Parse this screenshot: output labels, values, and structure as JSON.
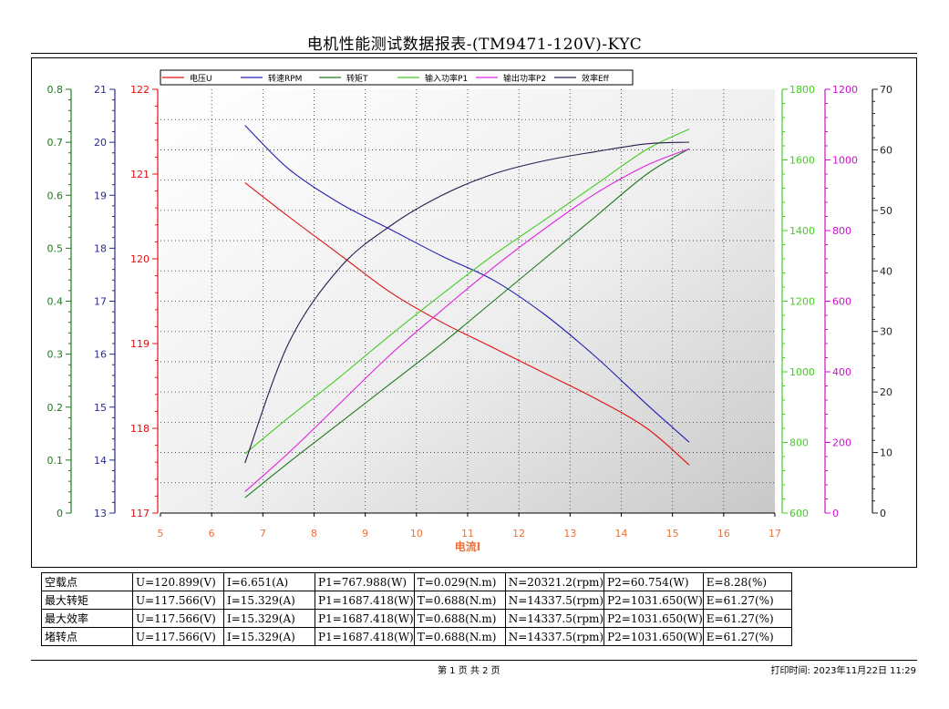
{
  "title": "电机性能测试数据报表-(TM9471-120V)-KYC",
  "chart_data": {
    "type": "line",
    "title": "",
    "xlabel": "电流I",
    "xlim": [
      5,
      17
    ],
    "x_ticks": [
      5,
      6,
      7,
      8,
      9,
      10,
      11,
      12,
      13,
      14,
      15,
      16,
      17
    ],
    "grid": true,
    "legend": "top",
    "x": [
      6.651,
      7.5,
      8.5,
      9.5,
      10.5,
      11.5,
      12.5,
      13.5,
      14.5,
      15.329
    ],
    "axes": [
      {
        "id": "torque",
        "side": "left",
        "range": [
          0,
          0.8
        ],
        "ticks": [
          0,
          0.1,
          0.2,
          0.3,
          0.4,
          0.5,
          0.6,
          0.7,
          0.8
        ],
        "color": "#1e7a1e"
      },
      {
        "id": "rpm",
        "side": "left",
        "range": [
          13,
          21
        ],
        "ticks": [
          13,
          14,
          15,
          16,
          17,
          18,
          19,
          20,
          21
        ],
        "color": "#2a2a8c"
      },
      {
        "id": "voltage",
        "side": "left",
        "range": [
          117,
          122
        ],
        "ticks": [
          117,
          118,
          119,
          120,
          121,
          122
        ],
        "color": "#e01010"
      },
      {
        "id": "p1",
        "side": "right",
        "range": [
          600,
          1800
        ],
        "ticks": [
          600,
          800,
          1000,
          1200,
          1400,
          1600,
          1800
        ],
        "color": "#44cc22"
      },
      {
        "id": "p2",
        "side": "right",
        "range": [
          0,
          1200
        ],
        "ticks": [
          0,
          200,
          400,
          600,
          800,
          1000,
          1200
        ],
        "color": "#cc10cc"
      },
      {
        "id": "eff",
        "side": "right",
        "range": [
          0,
          70
        ],
        "ticks": [
          0,
          10,
          20,
          30,
          40,
          50,
          60,
          70
        ],
        "color": "#222222"
      }
    ],
    "series": [
      {
        "name": "电压U",
        "axis": "voltage",
        "color": "#e01010",
        "values": [
          120.899,
          120.5,
          120.05,
          119.6,
          119.25,
          118.95,
          118.65,
          118.35,
          118.0,
          117.566
        ]
      },
      {
        "name": "转速RPM",
        "axis": "rpm",
        "color": "#2020b0",
        "values": [
          20.3212,
          19.5,
          18.85,
          18.35,
          17.85,
          17.4,
          16.75,
          15.95,
          15.05,
          14.3375
        ]
      },
      {
        "name": "转矩T",
        "axis": "torque",
        "color": "#1e7a1e",
        "values": [
          0.029,
          0.095,
          0.17,
          0.245,
          0.32,
          0.4,
          0.48,
          0.56,
          0.64,
          0.688
        ]
      },
      {
        "name": "输入功率P1",
        "axis": "p1",
        "color": "#44cc22",
        "values": [
          767.988,
          870,
          985,
          1105,
          1220,
          1330,
          1430,
          1530,
          1630,
          1687.418
        ]
      },
      {
        "name": "输出功率P2",
        "axis": "p2",
        "color": "#e020e0",
        "values": [
          60.754,
          170,
          310,
          450,
          575,
          695,
          805,
          905,
          985,
          1031.65
        ]
      },
      {
        "name": "效率Eff",
        "axis": "eff",
        "color": "#2a1a4e",
        "values": [
          8.28,
          28,
          40.5,
          47.5,
          52.5,
          56,
          58.2,
          59.7,
          61,
          61.27
        ]
      }
    ]
  },
  "table": {
    "rows": [
      [
        "空载点",
        "U=120.899(V)",
        "I=6.651(A)",
        "P1=767.988(W)",
        "T=0.029(N.m)",
        "N=20321.2(rpm)",
        "P2=60.754(W)",
        "E=8.28(%)"
      ],
      [
        "最大转矩",
        "U=117.566(V)",
        "I=15.329(A)",
        "P1=1687.418(W)",
        "T=0.688(N.m)",
        "N=14337.5(rpm)",
        "P2=1031.650(W)",
        "E=61.27(%)"
      ],
      [
        "最大效率",
        "U=117.566(V)",
        "I=15.329(A)",
        "P1=1687.418(W)",
        "T=0.688(N.m)",
        "N=14337.5(rpm)",
        "P2=1031.650(W)",
        "E=61.27(%)"
      ],
      [
        "堵转点",
        "U=117.566(V)",
        "I=15.329(A)",
        "P1=1687.418(W)",
        "T=0.688(N.m)",
        "N=14337.5(rpm)",
        "P2=1031.650(W)",
        "E=61.27(%)"
      ]
    ]
  },
  "footer": {
    "page_info": "第 1 页   共 2 页",
    "print_time": "打印时间: 2023年11月22日 11:29"
  }
}
